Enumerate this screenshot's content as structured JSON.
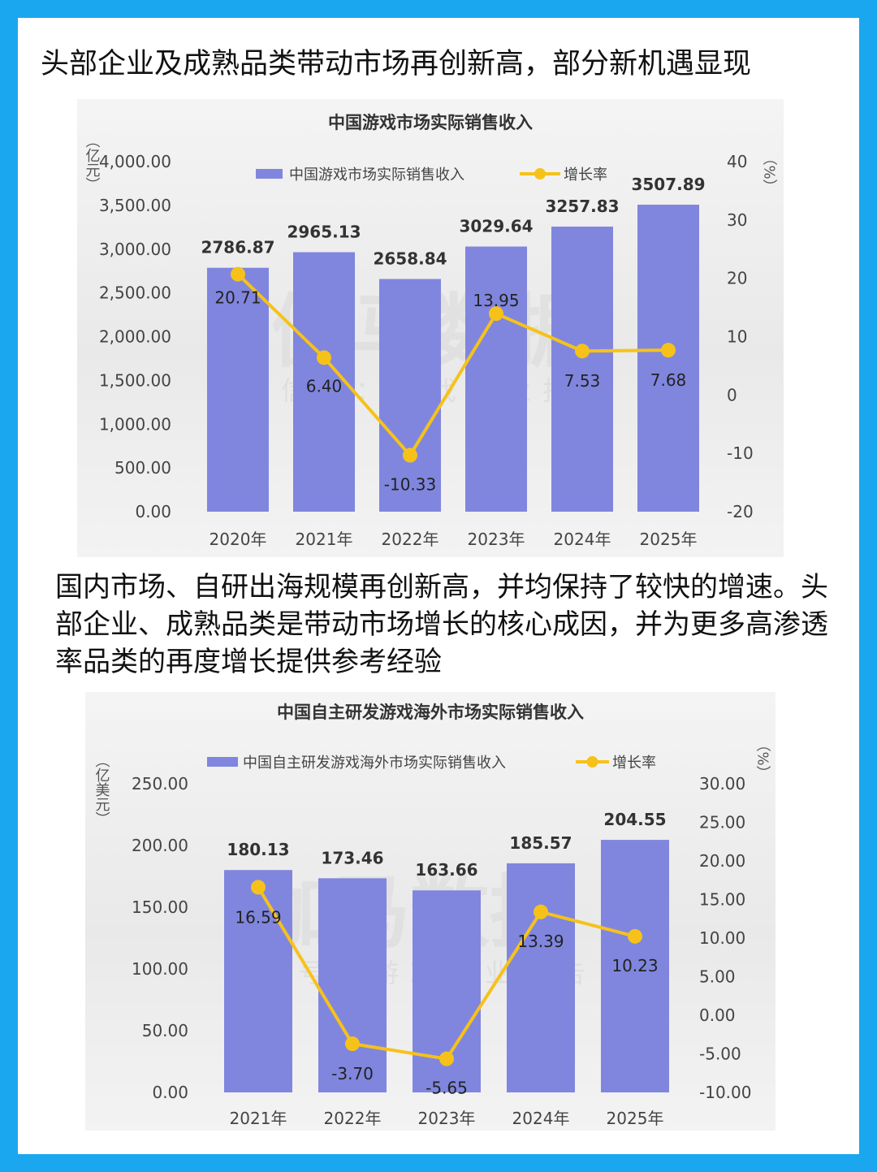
{
  "headline": "头部企业及成熟品类带动市场再创新高，部分新机遇显现",
  "paragraph": "国内市场、自研出海规模再创新高，并均保持了较快的增速。头部企业、成熟品类是带动市场增长的核心成因，并为更多高渗透率品类的再度增长提供参考经验",
  "watermark": {
    "main": "伽马数据",
    "sub": "微信号：游戏产业报告"
  },
  "colors": {
    "bar": "#8086de",
    "line": "#f6c21a",
    "frame": "#1aa7f0"
  },
  "chart_data": [
    {
      "type": "bar",
      "title": "中国游戏市场实际销售收入",
      "categories": [
        "2020年",
        "2021年",
        "2022年",
        "2023年",
        "2024年",
        "2025年"
      ],
      "series": [
        {
          "name": "中国游戏市场实际销售收入",
          "type": "bar",
          "axis": "left",
          "values": [
            2786.87,
            2965.13,
            2658.84,
            3029.64,
            3257.83,
            3507.89
          ],
          "labels": [
            "2786.87",
            "2965.13",
            "2658.84",
            "3029.64",
            "3257.83",
            "3507.89"
          ]
        },
        {
          "name": "增长率",
          "type": "line",
          "axis": "right",
          "values": [
            20.71,
            6.4,
            -10.33,
            13.95,
            7.53,
            7.68
          ],
          "labels": [
            "20.71",
            "6.40",
            "-10.33",
            "13.95",
            "7.53",
            "7.68"
          ]
        }
      ],
      "yleft": {
        "label": "（亿元）",
        "min": 0,
        "max": 4000,
        "ticks": [
          "0.00",
          "500.00",
          "1,000.00",
          "1,500.00",
          "2,000.00",
          "2,500.00",
          "3,000.00",
          "3,500.00",
          "4,000.00"
        ]
      },
      "yright": {
        "label": "（%）",
        "min": -20,
        "max": 40,
        "ticks": [
          "-20",
          "-10",
          "0",
          "10",
          "20",
          "30",
          "40"
        ]
      },
      "legend": "top-center",
      "grid": false
    },
    {
      "type": "bar",
      "title": "中国自主研发游戏海外市场实际销售收入",
      "categories": [
        "2021年",
        "2022年",
        "2023年",
        "2024年",
        "2025年"
      ],
      "series": [
        {
          "name": "中国自主研发游戏海外市场实际销售收入",
          "type": "bar",
          "axis": "left",
          "values": [
            180.13,
            173.46,
            163.66,
            185.57,
            204.55
          ],
          "labels": [
            "180.13",
            "173.46",
            "163.66",
            "185.57",
            "204.55"
          ]
        },
        {
          "name": "增长率",
          "type": "line",
          "axis": "right",
          "values": [
            16.59,
            -3.7,
            -5.65,
            13.39,
            10.23
          ],
          "labels": [
            "16.59",
            "-3.70",
            "-5.65",
            "13.39",
            "10.23"
          ]
        }
      ],
      "yleft": {
        "label": "（亿美元）",
        "min": 0,
        "max": 250,
        "ticks": [
          "0.00",
          "50.00",
          "100.00",
          "150.00",
          "200.00",
          "250.00"
        ]
      },
      "yright": {
        "label": "（%）",
        "min": -10,
        "max": 30,
        "ticks": [
          "-10.00",
          "-5.00",
          "0.00",
          "5.00",
          "10.00",
          "15.00",
          "20.00",
          "25.00",
          "30.00"
        ]
      },
      "legend": "top-center",
      "grid": false
    }
  ]
}
